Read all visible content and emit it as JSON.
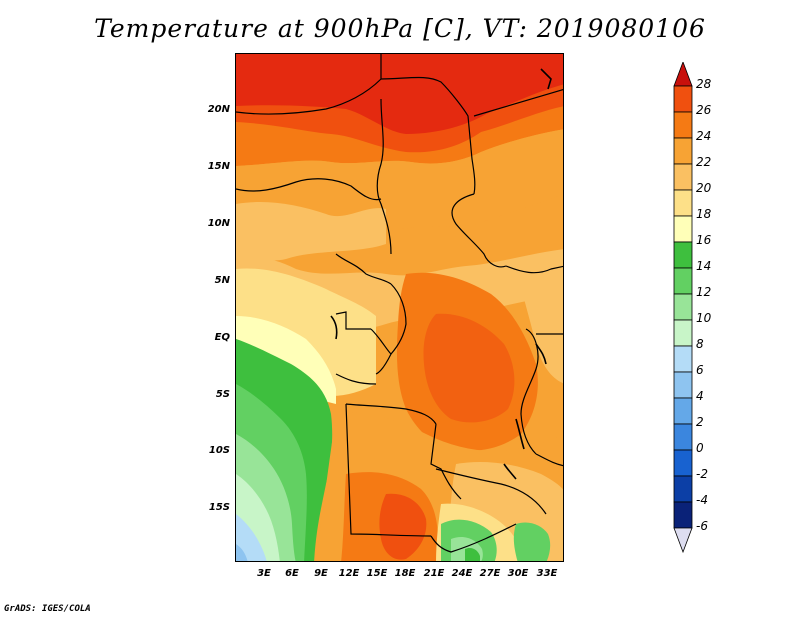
{
  "title": "Temperature at 900hPa [C], VT: 2019080106",
  "credit": "GrADS: IGES/COLA",
  "axes": {
    "lat_labels": [
      "20N",
      "15N",
      "10N",
      "5N",
      "EQ",
      "5S",
      "10S",
      "15S"
    ],
    "lon_labels": [
      "3E",
      "6E",
      "9E",
      "12E",
      "15E",
      "18E",
      "21E",
      "24E",
      "27E",
      "30E",
      "33E"
    ]
  },
  "colorbar": {
    "labels": [
      "28",
      "26",
      "24",
      "22",
      "20",
      "18",
      "16",
      "14",
      "12",
      "10",
      "8",
      "6",
      "4",
      "2",
      "0",
      "-2",
      "-4",
      "-6"
    ],
    "colors": [
      "#e42a10",
      "#f0500f",
      "#f57a14",
      "#f7a334",
      "#fac062",
      "#fde088",
      "#ffffb8",
      "#3ebf3e",
      "#62d062",
      "#98e498",
      "#c8f5c8",
      "#b4dcf7",
      "#8ec4f0",
      "#64a8e8",
      "#3b86de",
      "#1862d0",
      "#0c3fa6",
      "#0a2278"
    ],
    "top_arrow_color": "#c8100c",
    "bottom_arrow_color": "#ddddf0"
  }
}
